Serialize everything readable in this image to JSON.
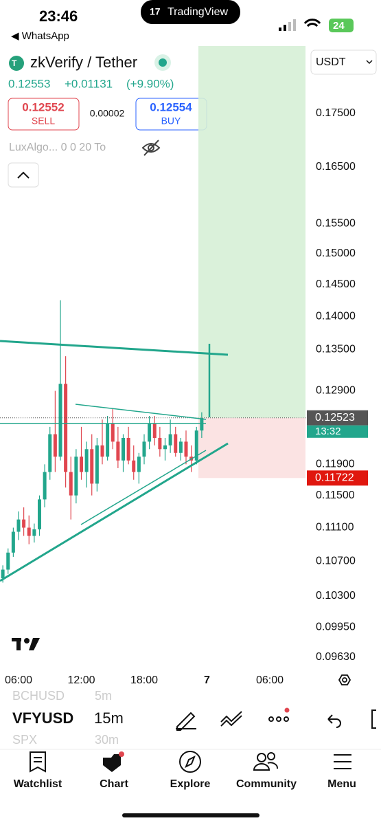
{
  "status_bar": {
    "time": "23:46",
    "back_app": "◀ WhatsApp",
    "battery": "24"
  },
  "banner": "TradingView",
  "header": {
    "symbol": "zkVerify / Tether",
    "currency": "USDT",
    "last_price": "0.12553",
    "change": "+0.01131",
    "change_pct": "(+9.90%)",
    "sell_price": "0.12552",
    "sell_label": "SELL",
    "spread": "0.00002",
    "buy_price": "0.12554",
    "buy_label": "BUY",
    "indicator": "LuxAlgo... 0 0 20 To"
  },
  "chart_data": {
    "type": "candlestick",
    "x": [
      4.5,
      5,
      5.5,
      6,
      6.5,
      7,
      7.5,
      8,
      8.5,
      9,
      9.5,
      10,
      10.5,
      11,
      11.5,
      12,
      12.5,
      13,
      13.5,
      14,
      14.5,
      15,
      15.5,
      16,
      16.5,
      17,
      17.5,
      18,
      18.5,
      19,
      19.5,
      20,
      20.5,
      21,
      21.5,
      22,
      22.5,
      23,
      23.5
    ],
    "open": [
      0.105,
      0.106,
      0.108,
      0.1105,
      0.112,
      0.111,
      0.11,
      0.1108,
      0.1145,
      0.118,
      0.123,
      0.12,
      0.13,
      0.118,
      0.115,
      0.12,
      0.118,
      0.121,
      0.1165,
      0.1215,
      0.12,
      0.1245,
      0.122,
      0.1195,
      0.1225,
      0.1195,
      0.118,
      0.12,
      0.122,
      0.1245,
      0.1225,
      0.121,
      0.1215,
      0.123,
      0.1205,
      0.122,
      0.12,
      0.1195,
      0.1235
    ],
    "high": [
      0.1065,
      0.1085,
      0.111,
      0.113,
      0.1135,
      0.1125,
      0.1115,
      0.115,
      0.119,
      0.124,
      0.129,
      0.1425,
      0.134,
      0.12,
      0.121,
      0.124,
      0.122,
      0.123,
      0.1225,
      0.125,
      0.1255,
      0.1265,
      0.124,
      0.123,
      0.124,
      0.1215,
      0.1205,
      0.123,
      0.1255,
      0.1255,
      0.124,
      0.1225,
      0.125,
      0.124,
      0.1225,
      0.1235,
      0.1215,
      0.124,
      0.126
    ],
    "low": [
      0.1045,
      0.1055,
      0.1075,
      0.1095,
      0.11,
      0.109,
      0.1092,
      0.11,
      0.1135,
      0.117,
      0.118,
      0.1195,
      0.116,
      0.112,
      0.114,
      0.117,
      0.116,
      0.115,
      0.1155,
      0.119,
      0.1195,
      0.121,
      0.1185,
      0.118,
      0.119,
      0.117,
      0.1165,
      0.119,
      0.121,
      0.1215,
      0.12,
      0.1195,
      0.1205,
      0.12,
      0.1195,
      0.119,
      0.118,
      0.119,
      0.1225
    ],
    "close": [
      0.106,
      0.108,
      0.1105,
      0.112,
      0.111,
      0.11,
      0.1108,
      0.1145,
      0.118,
      0.123,
      0.12,
      0.13,
      0.118,
      0.115,
      0.12,
      0.118,
      0.121,
      0.1165,
      0.1215,
      0.12,
      0.1245,
      0.122,
      0.1195,
      0.1225,
      0.1195,
      0.118,
      0.12,
      0.122,
      0.1245,
      0.1225,
      0.121,
      0.1215,
      0.123,
      0.1205,
      0.122,
      0.12,
      0.1195,
      0.1235,
      0.1252
    ],
    "up_color": "#22a68c",
    "down_color": "#e0464f",
    "xlim": [
      4.23,
      33.41
    ],
    "xticks": [
      {
        "value": 6,
        "label": "06:00"
      },
      {
        "value": 12,
        "label": "12:00"
      },
      {
        "value": 18,
        "label": "18:00"
      },
      {
        "value": 24,
        "label": "7"
      },
      {
        "value": 30,
        "label": "06:00"
      }
    ],
    "ylim": [
      0.0949,
      0.1894
    ],
    "yscale": "log",
    "yticks": [
      {
        "value": 0.175,
        "label": "0.17500"
      },
      {
        "value": 0.165,
        "label": "0.16500"
      },
      {
        "value": 0.155,
        "label": "0.15500"
      },
      {
        "value": 0.15,
        "label": "0.15000"
      },
      {
        "value": 0.145,
        "label": "0.14500"
      },
      {
        "value": 0.14,
        "label": "0.14000"
      },
      {
        "value": 0.135,
        "label": "0.13500"
      },
      {
        "value": 0.129,
        "label": "0.12900"
      },
      {
        "value": 0.119,
        "label": "0.11900"
      },
      {
        "value": 0.115,
        "label": "0.11500"
      },
      {
        "value": 0.111,
        "label": "0.11100"
      },
      {
        "value": 0.107,
        "label": "0.10700"
      },
      {
        "value": 0.103,
        "label": "0.10300"
      },
      {
        "value": 0.0995,
        "label": "0.09950"
      },
      {
        "value": 0.0963,
        "label": "0.09630"
      }
    ],
    "price_label": {
      "value": 0.12523,
      "label": "0.12523",
      "countdown": "13:32"
    },
    "stop_label": {
      "value": 0.11722,
      "label": "0.11722"
    }
  },
  "toolbar": {
    "prev_symbol": "BCHUSD",
    "prev_interval": "5m",
    "symbol": "VFYUSD",
    "interval": "15m",
    "next_symbol": "SPX",
    "next_interval": "30m"
  },
  "nav": [
    "Watchlist",
    "Chart",
    "Explore",
    "Community",
    "Menu"
  ]
}
